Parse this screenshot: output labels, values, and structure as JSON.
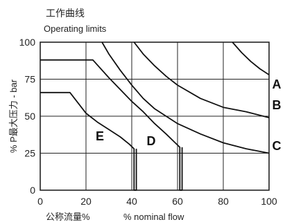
{
  "chart_data": {
    "type": "line",
    "title": "工作曲线",
    "subtitle": "Operating limits",
    "xlabel_cn": "公称流量%",
    "xlabel": "% nominal flow",
    "ylabel": "% P最大压力 - bar",
    "xlim": [
      0,
      100
    ],
    "ylim": [
      0,
      100
    ],
    "x_ticks": [
      "0",
      "20",
      "40",
      "60",
      "80",
      "100"
    ],
    "y_ticks": [
      "0",
      "25",
      "50",
      "75",
      "100"
    ],
    "grid": true,
    "series": [
      {
        "name": "A",
        "x": [
          84,
          88,
          92,
          96,
          100
        ],
        "y": [
          100,
          93,
          87,
          82,
          78
        ]
      },
      {
        "name": "B",
        "x": [
          41,
          45,
          50,
          55,
          60,
          70,
          80,
          90,
          100
        ],
        "y": [
          100,
          92,
          84,
          77,
          71,
          62,
          56,
          53,
          49
        ]
      },
      {
        "name": "C",
        "x": [
          27,
          30,
          35,
          40,
          45,
          50,
          60,
          70,
          80,
          90,
          100
        ],
        "y": [
          100,
          92,
          81,
          71,
          62,
          55,
          45,
          38,
          32,
          28,
          25
        ]
      },
      {
        "name": "D",
        "x": [
          0,
          23,
          30,
          35,
          40,
          45,
          50,
          55,
          59,
          61,
          61,
          62,
          62
        ],
        "y": [
          88,
          88,
          76,
          68,
          60,
          53,
          45,
          38,
          32,
          29,
          0,
          0,
          29
        ]
      },
      {
        "name": "E",
        "x": [
          0,
          13,
          20,
          25,
          30,
          35,
          39,
          41,
          41,
          42,
          42
        ],
        "y": [
          66,
          66,
          52,
          46,
          41,
          36,
          31,
          28,
          0,
          0,
          28
        ]
      }
    ]
  }
}
